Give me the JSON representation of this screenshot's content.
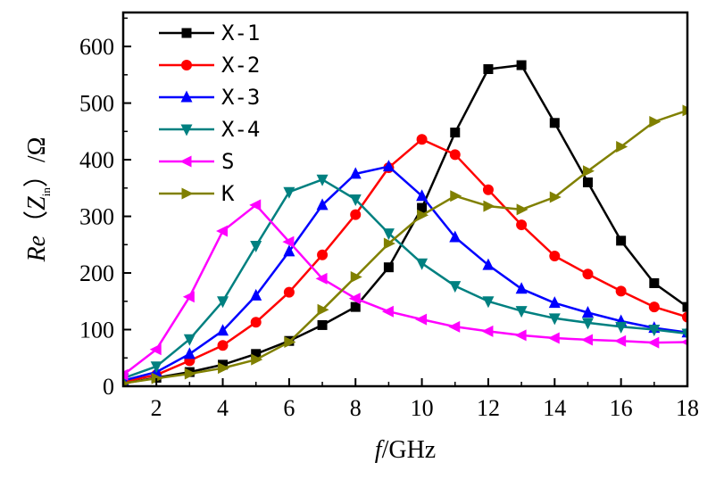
{
  "chart_data": {
    "type": "line",
    "title": "",
    "xlabel": {
      "italic": "f",
      "rest": "/GHz"
    },
    "ylabel": {
      "prefix": "Re（",
      "var": "Z",
      "sub": "in",
      "suffix": "）/Ω"
    },
    "xlim": [
      1,
      18
    ],
    "ylim": [
      0,
      660
    ],
    "xticks": [
      2,
      4,
      6,
      8,
      10,
      12,
      14,
      16,
      18
    ],
    "yticks": [
      0,
      100,
      200,
      300,
      400,
      500,
      600
    ],
    "grid": false,
    "legend_position": "top-left",
    "x": [
      1,
      2,
      3,
      4,
      5,
      6,
      7,
      8,
      9,
      10,
      11,
      12,
      13,
      14,
      15,
      16,
      17,
      18
    ],
    "series": [
      {
        "name": "X-1",
        "color": "#000000",
        "marker": "square",
        "values": [
          5,
          15,
          25,
          38,
          57,
          80,
          108,
          140,
          210,
          315,
          448,
          560,
          567,
          465,
          360,
          257,
          182,
          140
        ]
      },
      {
        "name": "X-2",
        "color": "#ff0000",
        "marker": "circle",
        "values": [
          8,
          20,
          45,
          72,
          113,
          166,
          232,
          303,
          386,
          436,
          409,
          347,
          285,
          230,
          198,
          168,
          140,
          122
        ]
      },
      {
        "name": "X-3",
        "color": "#0000ff",
        "marker": "triangle-up",
        "values": [
          10,
          25,
          57,
          98,
          160,
          238,
          320,
          375,
          388,
          336,
          263,
          214,
          172,
          147,
          130,
          115,
          103,
          95
        ]
      },
      {
        "name": "X-4",
        "color": "#008080",
        "marker": "triangle-down",
        "values": [
          14,
          35,
          83,
          150,
          248,
          343,
          365,
          330,
          270,
          217,
          177,
          150,
          133,
          120,
          112,
          105,
          100,
          93
        ]
      },
      {
        "name": "S",
        "color": "#ff00ff",
        "marker": "triangle-left",
        "values": [
          20,
          65,
          158,
          274,
          320,
          255,
          190,
          155,
          132,
          118,
          105,
          97,
          90,
          85,
          82,
          80,
          77,
          78
        ]
      },
      {
        "name": "K",
        "color": "#808000",
        "marker": "triangle-right",
        "values": [
          5,
          14,
          22,
          32,
          47,
          78,
          135,
          193,
          252,
          302,
          336,
          318,
          312,
          334,
          380,
          423,
          467,
          487
        ]
      }
    ]
  }
}
